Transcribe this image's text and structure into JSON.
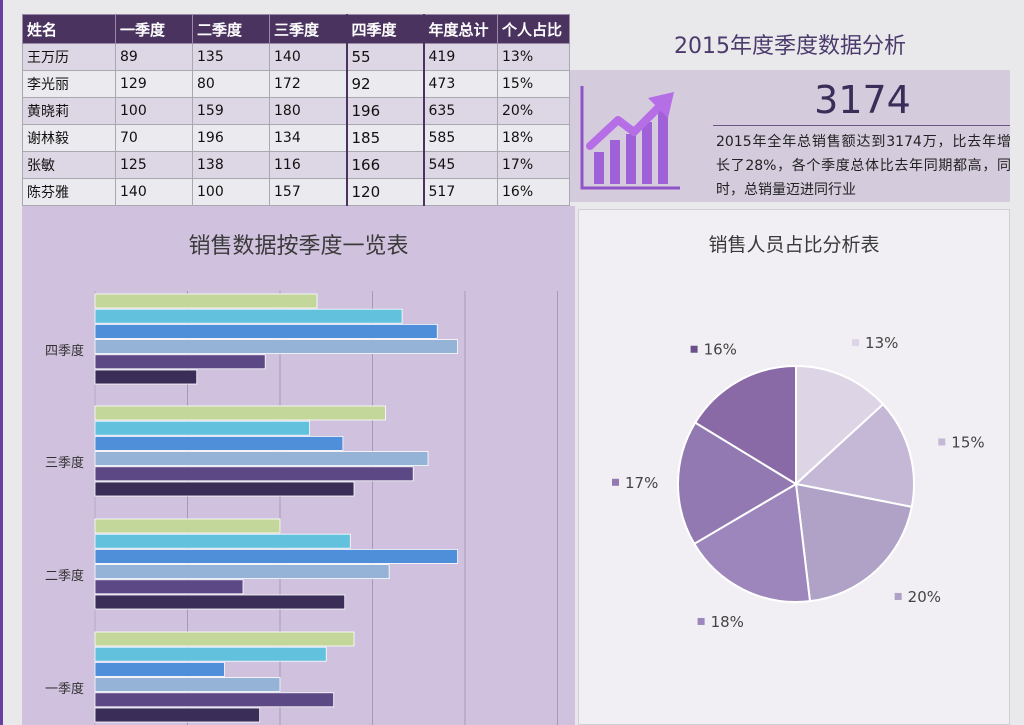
{
  "table": {
    "headers": [
      "姓名",
      "一季度",
      "二季度",
      "三季度",
      "四季度",
      "年度总计",
      "个人占比"
    ],
    "rows": [
      [
        "王万历",
        "89",
        "135",
        "140",
        "55",
        "419",
        "13%"
      ],
      [
        "李光丽",
        "129",
        "80",
        "172",
        "92",
        "473",
        "15%"
      ],
      [
        "黄晓莉",
        "100",
        "159",
        "180",
        "196",
        "635",
        "20%"
      ],
      [
        "谢林毅",
        "70",
        "196",
        "134",
        "185",
        "585",
        "18%"
      ],
      [
        "张敏",
        "125",
        "138",
        "116",
        "166",
        "545",
        "17%"
      ],
      [
        "陈芬雅",
        "140",
        "100",
        "157",
        "120",
        "517",
        "16%"
      ]
    ]
  },
  "summary": {
    "title": "2015年度季度数据分析",
    "total": "3174",
    "text": "2015年全年总销售额达到3174万，比去年增长了28%，各个季度总体比去年同期都高，同时，总销量迈进同行业",
    "icon": "trend-chart-icon"
  },
  "colors": {
    "header": "#4b3360",
    "bar_panel": "#d0c2de",
    "pie_panel": "#f1eff3"
  },
  "chart_data": [
    {
      "type": "bar",
      "orientation": "horizontal",
      "title": "销售数据按季度一览表",
      "categories": [
        "一季度",
        "二季度",
        "三季度",
        "四季度"
      ],
      "series": [
        {
          "values": [
            89,
            135,
            140,
            55
          ],
          "color": "#3a2d57"
        },
        {
          "values": [
            129,
            80,
            172,
            92
          ],
          "color": "#5c4885"
        },
        {
          "values": [
            100,
            159,
            180,
            196
          ],
          "color": "#95b3d7"
        },
        {
          "values": [
            70,
            196,
            134,
            185
          ],
          "color": "#4f8fd9"
        },
        {
          "values": [
            125,
            138,
            116,
            166
          ],
          "color": "#62c2de"
        },
        {
          "values": [
            140,
            100,
            157,
            120
          ],
          "color": "#c3d79b"
        }
      ],
      "xlim": [
        0,
        250
      ],
      "grid": true
    },
    {
      "type": "pie",
      "title": "销售人员占比分析表",
      "labels": [
        "13%",
        "15%",
        "20%",
        "18%",
        "17%",
        "16%"
      ],
      "values": [
        419,
        473,
        635,
        585,
        545,
        517
      ],
      "colors": [
        "#ddd5e6",
        "#c5b8d6",
        "#b0a2c6",
        "#9c86bb",
        "#9279b2",
        "#8a6aa6"
      ],
      "legend_marker_colors": [
        "#ddd5e6",
        "#c5b8d6",
        "#b0a2c6",
        "#9c86bb",
        "#9279b2",
        "#6a4f8a"
      ]
    }
  ]
}
